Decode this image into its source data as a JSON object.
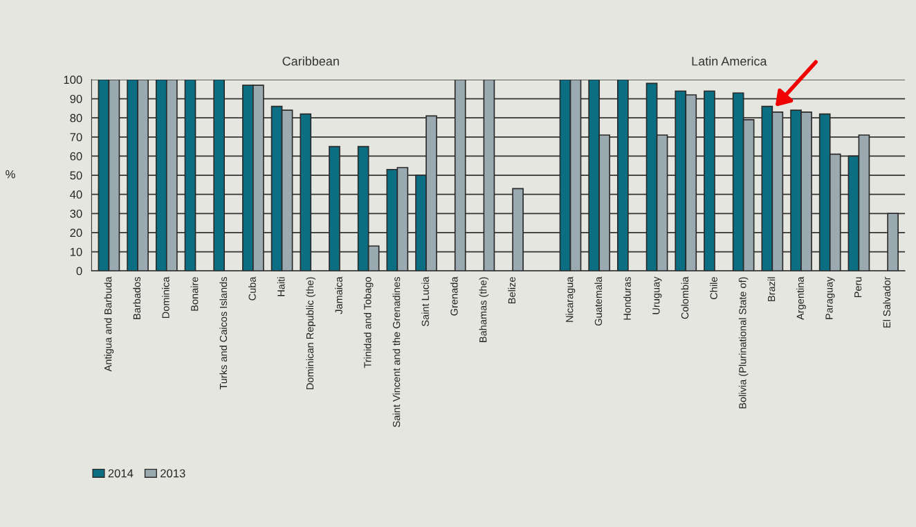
{
  "chart_data": {
    "type": "bar",
    "ylabel": "%",
    "categories": [
      "Antigua and Barbuda",
      "Barbados",
      "Dominica",
      "Bonaire",
      "Turks and Caicos Islands",
      "Cuba",
      "Haiti",
      "Dominican Republic (the)",
      "Jamaica",
      "Trinidad and Tobago",
      "Saint Vincent and the Grenadines",
      "Saint Lucia",
      "Grenada",
      "Bahamas (the)",
      "Belize",
      null,
      "Nicaragua",
      "Guatemala",
      "Honduras",
      "Uruguay",
      "Colombia",
      "Chile",
      "Bolivia (Plurinational State of)",
      "Brazil",
      "Argentina",
      "Paraguay",
      "Peru",
      "El Salvador"
    ],
    "series": [
      {
        "name": "2014",
        "color": "#0b6e82",
        "values": [
          100,
          100,
          100,
          100,
          100,
          97,
          86,
          82,
          65,
          65,
          53,
          50,
          null,
          null,
          null,
          null,
          100,
          100,
          100,
          98,
          94,
          94,
          93,
          86,
          84,
          82,
          60,
          null
        ]
      },
      {
        "name": "2013",
        "color": "#9aaab0",
        "values": [
          100,
          100,
          100,
          null,
          null,
          97,
          84,
          null,
          null,
          13,
          54,
          81,
          100,
          100,
          43,
          null,
          100,
          71,
          null,
          71,
          92,
          null,
          79,
          83,
          83,
          61,
          71,
          30
        ]
      }
    ],
    "ylim": [
      0,
      100
    ],
    "yticks": [
      0,
      10,
      20,
      30,
      40,
      50,
      60,
      70,
      80,
      90,
      100
    ],
    "grid": "y",
    "legend": "bottom left",
    "annotations": [
      "Caribbean",
      "Latin America"
    ]
  }
}
